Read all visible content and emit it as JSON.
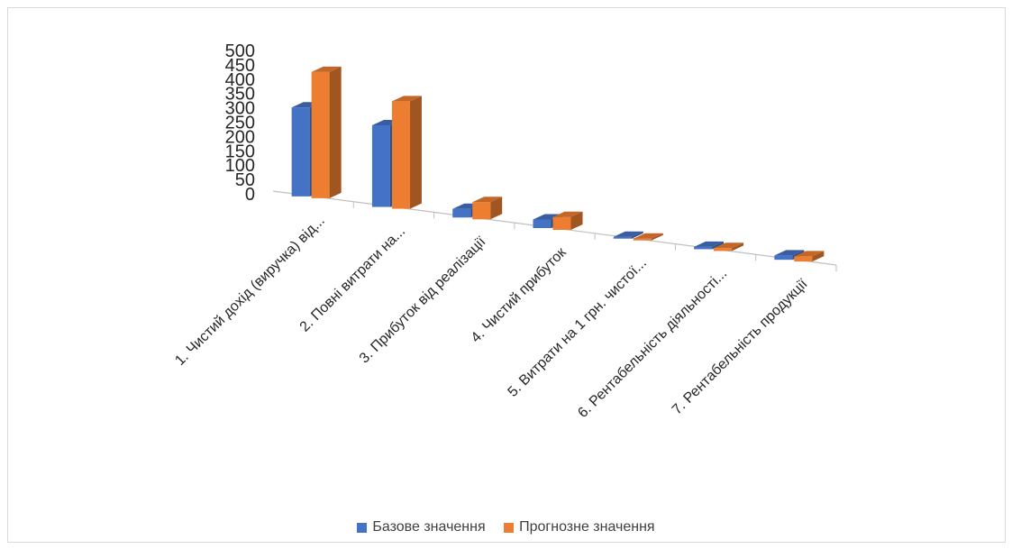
{
  "chart_data": {
    "type": "bar",
    "subtype": "3d-clustered-column",
    "title": "",
    "xlabel": "",
    "ylabel": "",
    "ylim": [
      0,
      500
    ],
    "yticks": [
      0,
      50,
      100,
      150,
      200,
      250,
      300,
      350,
      400,
      450,
      500
    ],
    "categories": [
      "1. Чистий дохід (виручка) від...",
      "2. Повні витрати на...",
      "3. Прибуток від реалізації",
      "4. Чистий прибуток",
      "5. Витрати на 1 грн. чистої...",
      "6. Рентабельність діяльності...",
      "7. Рентабельність продукції"
    ],
    "series": [
      {
        "name": "Базове значення",
        "color": "#4472C4",
        "values": [
          310,
          285,
          30,
          30,
          1,
          8,
          15
        ]
      },
      {
        "name": "Прогнозне значення",
        "color": "#ED7D31",
        "values": [
          440,
          375,
          60,
          45,
          1,
          10,
          18
        ]
      }
    ],
    "grid": false,
    "legend_position": "bottom"
  }
}
